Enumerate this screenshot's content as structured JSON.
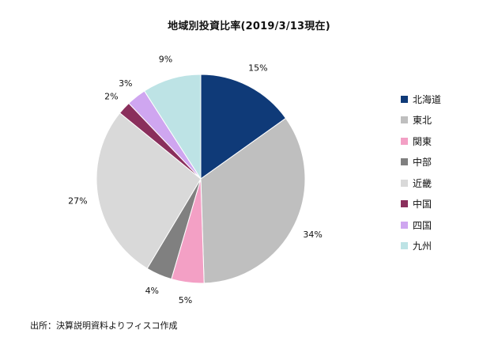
{
  "chart_data": {
    "type": "pie",
    "title": "地域別投資比率(2019/3/13現在)",
    "categories": [
      "北海道",
      "東北",
      "関東",
      "中部",
      "近畿",
      "中国",
      "四国",
      "九州"
    ],
    "values": [
      15,
      34,
      5,
      4,
      27,
      2,
      3,
      9
    ],
    "labels": [
      "15%",
      "34%",
      "5%",
      "4%",
      "27%",
      "2%",
      "3%",
      "9%"
    ],
    "colors": [
      "#0f3a78",
      "#bfbfbf",
      "#f3a0c5",
      "#808080",
      "#d9d9d9",
      "#8a2f5c",
      "#cfa6f0",
      "#bde3e5"
    ],
    "start": "12 o'clock",
    "direction": "clockwise",
    "legend": "right"
  },
  "footer": {
    "source": "出所：決算説明資料よりフィスコ作成"
  }
}
